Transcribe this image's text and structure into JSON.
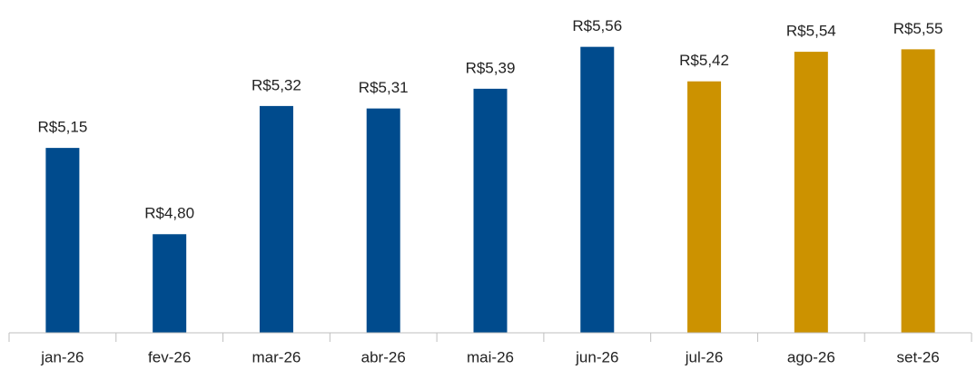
{
  "chart_data": {
    "type": "bar",
    "categories": [
      "jan-26",
      "fev-26",
      "mar-26",
      "abr-26",
      "mai-26",
      "jun-26",
      "jul-26",
      "ago-26",
      "set-26"
    ],
    "values": [
      5.15,
      4.8,
      5.32,
      5.31,
      5.39,
      5.56,
      5.42,
      5.54,
      5.55
    ],
    "value_labels": [
      "R$5,15",
      "R$4,80",
      "R$5,32",
      "R$5,31",
      "R$5,39",
      "R$5,56",
      "R$5,42",
      "R$5,54",
      "R$5,55"
    ],
    "colors": [
      "#004b8d",
      "#004b8d",
      "#004b8d",
      "#004b8d",
      "#004b8d",
      "#004b8d",
      "#cc9200",
      "#cc9200",
      "#cc9200"
    ],
    "ylim": [
      4.4,
      5.75
    ]
  }
}
